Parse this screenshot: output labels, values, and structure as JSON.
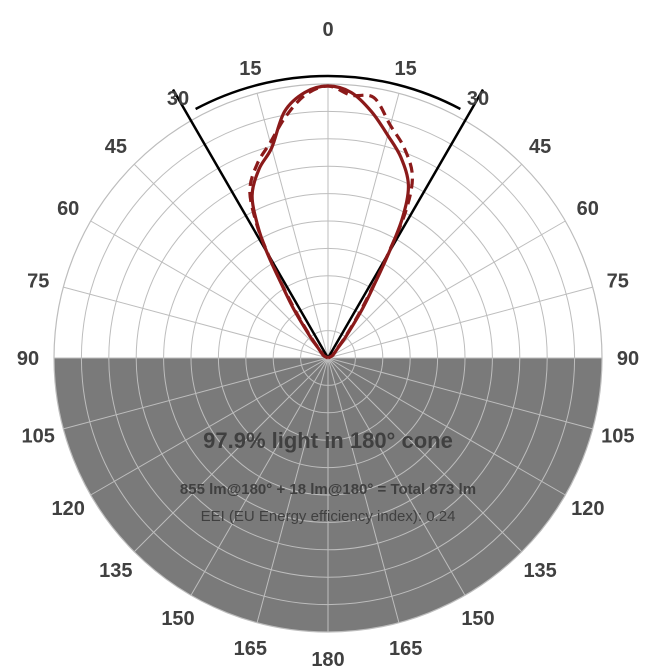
{
  "chart_data": {
    "type": "polar",
    "title": "",
    "angle_ticks_left": [
      0,
      15,
      30,
      45,
      60,
      75,
      90,
      105,
      120,
      135,
      150,
      165,
      180
    ],
    "angle_ticks_right": [
      15,
      30,
      45,
      60,
      75,
      90,
      105,
      120,
      135,
      150,
      165
    ],
    "cone_half_angle_deg": 30,
    "radial_rings": 10,
    "series": [
      {
        "style": "solid",
        "color": "#8B1A1A",
        "angles": [
          0,
          5,
          10,
          15,
          20,
          25,
          28,
          30,
          32,
          35,
          40,
          45,
          60,
          90
        ],
        "values": [
          1.0,
          0.98,
          0.92,
          0.8,
          0.74,
          0.66,
          0.55,
          0.45,
          0.33,
          0.22,
          0.1,
          0.05,
          0.02,
          0.0
        ]
      },
      {
        "style": "dashed",
        "color": "#8B1A1A",
        "angles": [
          0,
          5,
          10,
          15,
          20,
          25,
          28,
          30,
          32,
          35,
          40,
          45,
          60,
          90
        ],
        "values": [
          1.0,
          0.97,
          0.9,
          0.82,
          0.76,
          0.68,
          0.56,
          0.44,
          0.32,
          0.2,
          0.09,
          0.04,
          0.02,
          0.0
        ]
      }
    ],
    "lower_half_color": "#7a7a7a",
    "annotations": {
      "headline": "97.9% light in 180° cone",
      "lumens": "855 lm@180° + 18 lm@180° = Total 873 lm",
      "eei": "EEI (EU Energy efficiency index): 0.24"
    }
  }
}
